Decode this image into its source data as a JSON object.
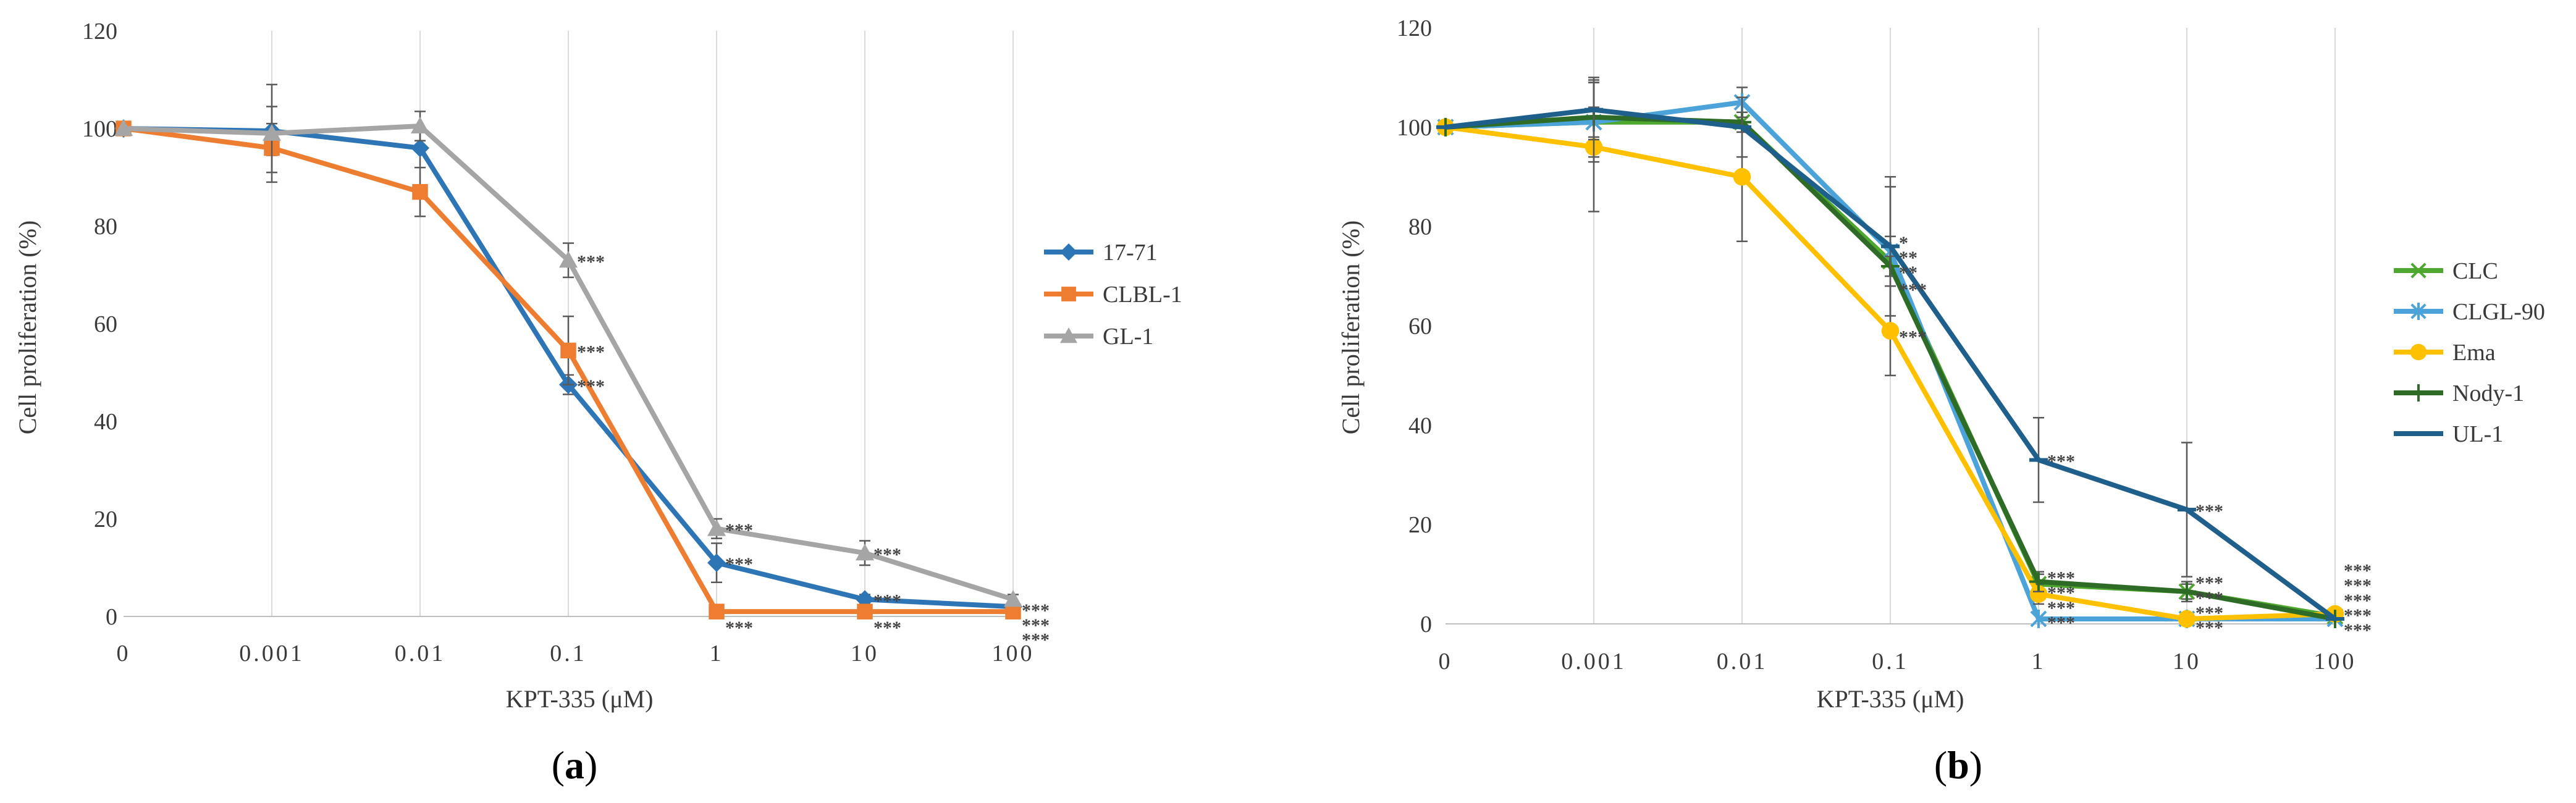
{
  "chart_data": [
    {
      "type": "line",
      "panel_label": "a",
      "xlabel": "KPT-335 (μM)",
      "ylabel": "Cell proliferation (%)",
      "categories": [
        "0",
        "0.001",
        "0.01",
        "0.1",
        "1",
        "10",
        "100"
      ],
      "yticks": [
        "0",
        "20",
        "40",
        "60",
        "80",
        "100",
        "120"
      ],
      "ylim": [
        0,
        120
      ],
      "legend": "right",
      "series": [
        {
          "name": "17-71",
          "color": "#2e75b6",
          "marker": "diamond",
          "values": [
            100,
            99.5,
            96,
            47.5,
            11,
            3.5,
            2
          ],
          "err": [
            0,
            5,
            4,
            2,
            4,
            1,
            0.5
          ]
        },
        {
          "name": "CLBL-1",
          "color": "#ed7d31",
          "marker": "square",
          "values": [
            100,
            96,
            87,
            54.5,
            1,
            1,
            1
          ],
          "err": [
            0,
            5,
            5,
            7,
            0.5,
            0.5,
            0.5
          ]
        },
        {
          "name": "GL-1",
          "color": "#a5a5a5",
          "marker": "triangle",
          "values": [
            100,
            99,
            100.5,
            73,
            18,
            13,
            3.5
          ],
          "err": [
            0,
            10,
            3,
            3.5,
            2,
            2.5,
            1
          ]
        }
      ],
      "annotations": [
        {
          "x": "0.1",
          "y": 73,
          "text": "***"
        },
        {
          "x": "0.1",
          "y": 54.5,
          "text": "***"
        },
        {
          "x": "0.1",
          "y": 47.5,
          "text": "***"
        },
        {
          "x": "1",
          "y": 18,
          "text": "***"
        },
        {
          "x": "1",
          "y": 11,
          "text": "***"
        },
        {
          "x": "1",
          "y": -2,
          "text": "***"
        },
        {
          "x": "10",
          "y": 13,
          "text": "***"
        },
        {
          "x": "10",
          "y": 3.5,
          "text": "***"
        },
        {
          "x": "10",
          "y": -2,
          "text": "***"
        },
        {
          "x": "100",
          "y": 1.5,
          "text": "***"
        },
        {
          "x": "100",
          "y": -1.5,
          "text": "***"
        },
        {
          "x": "100",
          "y": -4.5,
          "text": "***"
        }
      ]
    },
    {
      "type": "line",
      "panel_label": "b",
      "xlabel": "KPT-335 (μM)",
      "ylabel": "Cell proliferation (%)",
      "categories": [
        "0",
        "0.001",
        "0.01",
        "0.1",
        "1",
        "10",
        "100"
      ],
      "yticks": [
        "0",
        "20",
        "40",
        "60",
        "80",
        "100",
        "120"
      ],
      "ylim": [
        0,
        120
      ],
      "legend": "right",
      "series": [
        {
          "name": "CLC",
          "color": "#4ea72e",
          "marker": "x",
          "values": [
            100,
            101,
            101,
            73,
            8,
            6.5,
            1.5
          ],
          "err": [
            0,
            8,
            2,
            15,
            2,
            2,
            0.5
          ]
        },
        {
          "name": "CLGL-90",
          "color": "#4ba3d9",
          "marker": "star",
          "values": [
            100,
            101,
            105,
            75,
            1,
            1,
            1
          ],
          "err": [
            0,
            3,
            3,
            3,
            0.5,
            0.5,
            0.5
          ]
        },
        {
          "name": "Ema",
          "color": "#ffc000",
          "marker": "circle",
          "values": [
            100,
            96,
            90,
            59,
            6,
            1,
            2
          ],
          "err": [
            0,
            13,
            13,
            9,
            2,
            0.5,
            0.5
          ]
        },
        {
          "name": "Nody-1",
          "color": "#2e6b26",
          "marker": "plus",
          "values": [
            100,
            102,
            101,
            72,
            8.5,
            6.5,
            1
          ],
          "err": [
            0,
            8,
            2,
            2,
            2,
            1.5,
            0.5
          ]
        },
        {
          "name": "UL-1",
          "color": "#1f5f8b",
          "marker": "dash",
          "values": [
            100,
            103.5,
            100,
            76,
            33,
            23,
            1
          ],
          "err": [
            0,
            6,
            6,
            14,
            8.5,
            13.5,
            0.5
          ]
        }
      ],
      "annotations": [
        {
          "x": "0.1",
          "y": 77,
          "text": "*"
        },
        {
          "x": "0.1",
          "y": 74,
          "text": "**"
        },
        {
          "x": "0.1",
          "y": 71,
          "text": "**"
        },
        {
          "x": "0.1",
          "y": 67.5,
          "text": "***"
        },
        {
          "x": "0.1",
          "y": 58,
          "text": "***"
        },
        {
          "x": "1",
          "y": 33,
          "text": "***"
        },
        {
          "x": "1",
          "y": 9.5,
          "text": "***"
        },
        {
          "x": "1",
          "y": 6.5,
          "text": "***"
        },
        {
          "x": "1",
          "y": 3.5,
          "text": "***"
        },
        {
          "x": "1",
          "y": 0.5,
          "text": "***"
        },
        {
          "x": "10",
          "y": 23,
          "text": "***"
        },
        {
          "x": "10",
          "y": 8.5,
          "text": "***"
        },
        {
          "x": "10",
          "y": 5.5,
          "text": "***"
        },
        {
          "x": "10",
          "y": 2.5,
          "text": "***"
        },
        {
          "x": "10",
          "y": -0.5,
          "text": "***"
        },
        {
          "x": "100",
          "y": 11,
          "text": "***"
        },
        {
          "x": "100",
          "y": 8,
          "text": "***"
        },
        {
          "x": "100",
          "y": 5,
          "text": "***"
        },
        {
          "x": "100",
          "y": 2,
          "text": "***"
        },
        {
          "x": "100",
          "y": -1,
          "text": "***"
        }
      ]
    }
  ]
}
